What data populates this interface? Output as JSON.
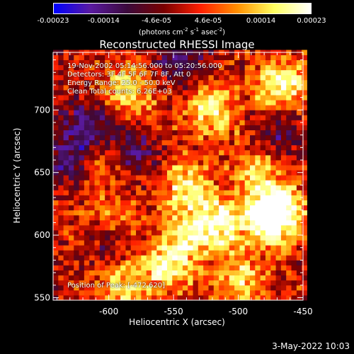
{
  "colorbar": {
    "ticks": [
      "-0.00023",
      "-0.00014",
      "-4.6e-05",
      "4.6e-05",
      "0.00014",
      "0.00023"
    ],
    "tick_values": [
      -0.00023,
      -0.00014,
      -4.6e-05,
      4.6e-05,
      0.00014,
      0.00023
    ],
    "range": [
      -0.00023,
      0.00023
    ],
    "unit_prefix": "(photons cm",
    "unit_exp1": "-2",
    "unit_mid1": " s",
    "unit_exp2": "-1",
    "unit_mid2": " asec",
    "unit_exp3": "-2",
    "unit_suffix": ")",
    "colors": [
      "#0000ff",
      "#5a1aa0",
      "#3c0a3c",
      "#7a0000",
      "#ff2000",
      "#ff9000",
      "#ffff60",
      "#ffffff"
    ]
  },
  "annotations": {
    "time_range": "19-Nov-2002 05:14:56.000 to 05:20:56.000",
    "detectors": "Detectors: 3F 4F 5F 6F 7F 8F, Att 0",
    "energy_range": "Energy Range: 25.0 - 50.0 keV",
    "clean_counts": "Clean     Total counts: 6.26E+03",
    "peak_position": "Position of Peak:  [-472,620]"
  },
  "footer": {
    "date": "3-May-2022 10:03"
  },
  "chart_data": {
    "type": "heatmap",
    "title": "Reconstructed RHESSI Image",
    "xlabel": "Heliocentric X (arcsec)",
    "ylabel": "Heliocentric Y (arcsec)",
    "xlim": [
      -643,
      -450
    ],
    "ylim": [
      548,
      746
    ],
    "x_ticks": [
      -600,
      -550,
      -500,
      -450
    ],
    "x_tick_labels": [
      "-600",
      "-550",
      "-500",
      "-450"
    ],
    "y_ticks": [
      550,
      600,
      650,
      700
    ],
    "y_tick_labels": [
      "550",
      "600",
      "650",
      "700"
    ],
    "grid": false,
    "colormap": "blue-purple-red-orange-yellow-white",
    "pixel_size_arcsec": 4,
    "peak": [
      -472,
      620
    ],
    "hotspots": [
      {
        "x": -470,
        "y": 622,
        "v": 0.00022
      },
      {
        "x": -476,
        "y": 612,
        "v": 0.0002
      },
      {
        "x": -466,
        "y": 720,
        "v": 0.00021
      },
      {
        "x": -520,
        "y": 700,
        "v": 0.00018
      },
      {
        "x": -540,
        "y": 640,
        "v": 0.00016
      },
      {
        "x": -515,
        "y": 610,
        "v": 0.00019
      },
      {
        "x": -555,
        "y": 575,
        "v": 0.00017
      },
      {
        "x": -590,
        "y": 560,
        "v": 0.00015
      },
      {
        "x": -585,
        "y": 715,
        "v": 0.00016
      },
      {
        "x": -610,
        "y": 655,
        "v": 0.00012
      },
      {
        "x": -500,
        "y": 565,
        "v": 0.00014
      },
      {
        "x": -540,
        "y": 600,
        "v": 0.00015
      },
      {
        "x": -600,
        "y": 610,
        "v": 0.00011
      },
      {
        "x": -485,
        "y": 655,
        "v": 0.00013
      }
    ],
    "coldspots": [
      {
        "x": -615,
        "y": 690,
        "v": -0.00016
      },
      {
        "x": -630,
        "y": 660,
        "v": -0.00018
      },
      {
        "x": -545,
        "y": 740,
        "v": -0.00014
      },
      {
        "x": -580,
        "y": 665,
        "v": -0.00012
      },
      {
        "x": -470,
        "y": 680,
        "v": -0.00012
      },
      {
        "x": -600,
        "y": 595,
        "v": -0.0001
      }
    ]
  }
}
